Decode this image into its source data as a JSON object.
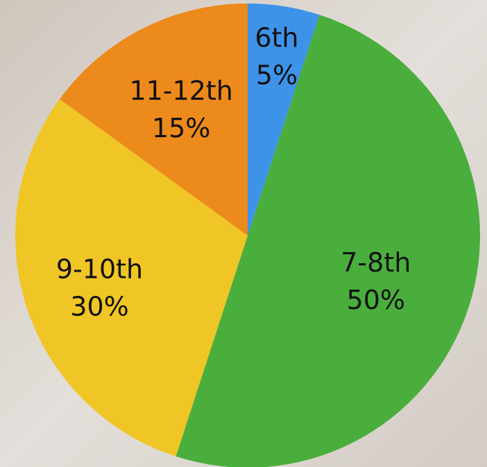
{
  "chart_data": {
    "type": "pie",
    "categories": [
      "6th",
      "7-8th",
      "9-10th",
      "11-12th"
    ],
    "values": [
      5,
      50,
      30,
      15
    ],
    "value_labels": [
      "5%",
      "50%",
      "30%",
      "15%"
    ],
    "colors": [
      "#3d93e8",
      "#4aae3c",
      "#f0c526",
      "#ec8a1c"
    ]
  }
}
